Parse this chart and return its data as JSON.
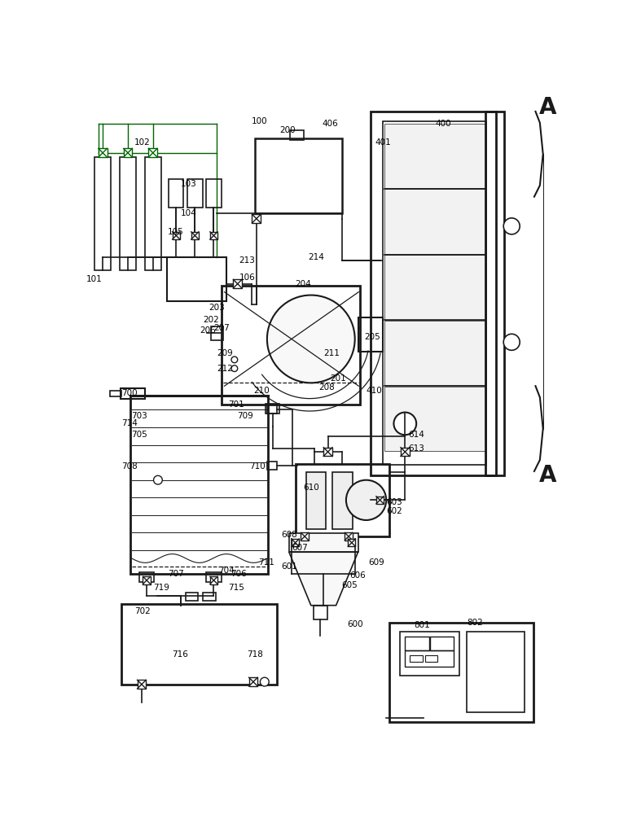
{
  "bg_color": "#ffffff",
  "lc": "#1a1a1a",
  "gc": "#006400",
  "fig_w": 7.6,
  "fig_h": 10.0,
  "dpi": 100
}
